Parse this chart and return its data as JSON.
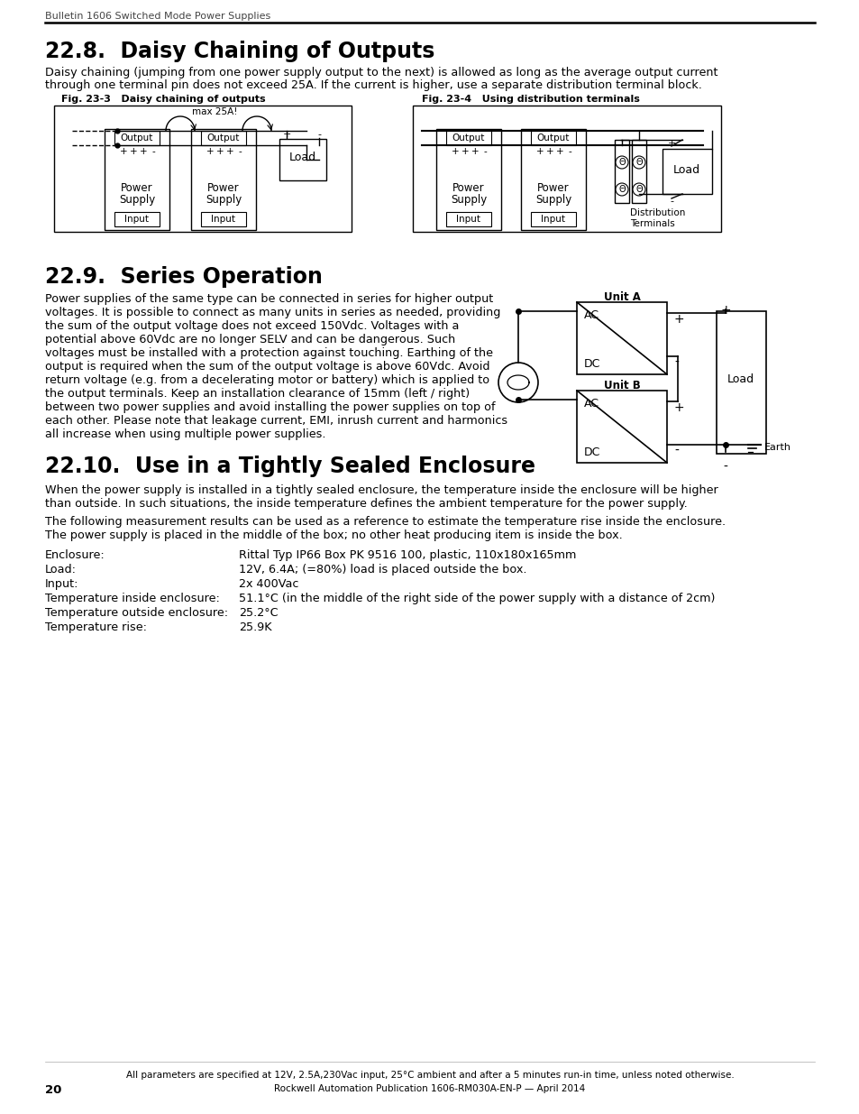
{
  "page_number": "20",
  "header_text": "Bulletin 1606 Switched Mode Power Supplies",
  "footer_line1": "All parameters are specified at 12V, 2.5A,230Vac input, 25°C ambient and after a 5 minutes run-in time, unless noted otherwise.",
  "footer_line2": "Rockwell Automation Publication 1606-RM030A-EN-P — April 2014",
  "section1_title": "22.8.  Daisy Chaining of Outputs",
  "section1_body_line1": "Daisy chaining (jumping from one power supply output to the next) is allowed as long as the average output current",
  "section1_body_line2": "through one terminal pin does not exceed 25A. If the current is higher, use a separate distribution terminal block.",
  "fig1_label": "Fig. 23-3   Daisy chaining of outputs",
  "fig2_label": "Fig. 23-4   Using distribution terminals",
  "section2_title": "22.9.  Series Operation",
  "section2_body": [
    "Power supplies of the same type can be connected in series for higher output",
    "voltages. It is possible to connect as many units in series as needed, providing",
    "the sum of the output voltage does not exceed 150Vdc. Voltages with a",
    "potential above 60Vdc are no longer SELV and can be dangerous. Such",
    "voltages must be installed with a protection against touching. Earthing of the",
    "output is required when the sum of the output voltage is above 60Vdc. Avoid",
    "return voltage (e.g. from a decelerating motor or battery) which is applied to",
    "the output terminals. Keep an installation clearance of 15mm (left / right)",
    "between two power supplies and avoid installing the power supplies on top of",
    "each other. Please note that leakage current, EMI, inrush current and harmonics",
    "all increase when using multiple power supplies."
  ],
  "section3_title": "22.10.  Use in a Tightly Sealed Enclosure",
  "section3_body1_line1": "When the power supply is installed in a tightly sealed enclosure, the temperature inside the enclosure will be higher",
  "section3_body1_line2": "than outside. In such situations, the inside temperature defines the ambient temperature for the power supply.",
  "section3_body2": "The following measurement results can be used as a reference to estimate the temperature rise inside the enclosure.",
  "section3_body3": "The power supply is placed in the middle of the box; no other heat producing item is inside the box.",
  "section3_entries": [
    [
      "Enclosure:",
      "Rittal Typ IP66 Box PK 9516 100, plastic, 110x180x165mm"
    ],
    [
      "Load:",
      "12V, 6.4A; (=80%) load is placed outside the box."
    ],
    [
      "Input:",
      "2x 400Vac"
    ],
    [
      "Temperature inside enclosure:",
      "51.1°C (in the middle of the right side of the power supply with a distance of 2cm)"
    ],
    [
      "Temperature outside enclosure:",
      "25.2°C"
    ],
    [
      "Temperature rise:",
      "25.9K"
    ]
  ],
  "bg_color": "#ffffff",
  "text_color": "#000000"
}
